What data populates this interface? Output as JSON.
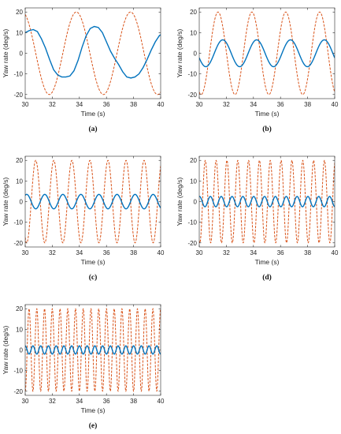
{
  "colors": {
    "measured": "#0072BD",
    "reference": "#D95319"
  },
  "chart_data": [
    {
      "type": "line",
      "caption": "(a)",
      "xlabel": "Time (s)",
      "ylabel": "Yaw rate (deg/s)",
      "xlim": [
        30,
        40
      ],
      "ylim": [
        -22,
        22
      ],
      "xticks": [
        "30",
        "32",
        "34",
        "36",
        "38",
        "40"
      ],
      "yticks": [
        "-20",
        "-10",
        "0",
        "10",
        "20"
      ],
      "series": [
        {
          "style": "dashed",
          "color": "#D95319",
          "frequency_hz": 0.25,
          "amplitude": 20,
          "phase_deg": 110
        },
        {
          "style": "solid",
          "color": "#0072BD",
          "x": [
            30,
            30.3,
            30.6,
            30.9,
            31.2,
            31.5,
            31.8,
            32.1,
            32.4,
            32.7,
            33.0,
            33.3,
            33.6,
            33.9,
            34.2,
            34.5,
            34.8,
            35.1,
            35.4,
            35.7,
            36.0,
            36.3,
            36.6,
            36.9,
            37.2,
            37.5,
            37.8,
            38.1,
            38.4,
            38.7,
            39.0,
            39.3,
            39.6,
            39.9,
            40
          ],
          "y": [
            10,
            11,
            11.5,
            10.5,
            7,
            2.5,
            -3,
            -8,
            -10.5,
            -11.5,
            -11.5,
            -11,
            -8.5,
            -3.5,
            3,
            8.5,
            12,
            13,
            12.5,
            10,
            5.5,
            1,
            -2.5,
            -5.5,
            -9,
            -11.5,
            -12,
            -11.5,
            -10,
            -7,
            -3,
            1.5,
            5.5,
            8.5,
            9
          ]
        }
      ]
    },
    {
      "type": "line",
      "caption": "(b)",
      "xlabel": "Time (s)",
      "ylabel": "Yaw rate (deg/s)",
      "xlim": [
        30,
        40
      ],
      "ylim": [
        -22,
        22
      ],
      "xticks": [
        "30",
        "32",
        "34",
        "36",
        "38",
        "40"
      ],
      "yticks": [
        "-20",
        "-10",
        "0",
        "10",
        "20"
      ],
      "series": [
        {
          "style": "dashed",
          "color": "#D95319",
          "frequency_hz": 0.4,
          "amplitude": 20,
          "phase_deg": 250
        },
        {
          "style": "solid",
          "color": "#0072BD",
          "frequency_hz": 0.4,
          "amplitude": 6.5,
          "phase_deg": 200
        }
      ]
    },
    {
      "type": "line",
      "caption": "(c)",
      "xlabel": "Time (s)",
      "ylabel": "Yaw rate (deg/s)",
      "xlim": [
        30,
        40
      ],
      "ylim": [
        -22,
        22
      ],
      "xticks": [
        "30",
        "32",
        "34",
        "36",
        "38",
        "40"
      ],
      "yticks": [
        "-20",
        "-10",
        "0",
        "10",
        "20"
      ],
      "series": [
        {
          "style": "dashed",
          "color": "#D95319",
          "frequency_hz": 0.75,
          "amplitude": 20,
          "phase_deg": 240
        },
        {
          "style": "solid",
          "color": "#0072BD",
          "frequency_hz": 0.75,
          "amplitude": 3.5,
          "phase_deg": 60
        }
      ]
    },
    {
      "type": "line",
      "caption": "(d)",
      "xlabel": "Time (s)",
      "ylabel": "Yaw rate (deg/s)",
      "xlim": [
        30,
        40
      ],
      "ylim": [
        -22,
        22
      ],
      "xticks": [
        "30",
        "32",
        "34",
        "36",
        "38",
        "40"
      ],
      "yticks": [
        "-20",
        "-10",
        "0",
        "10",
        "20"
      ],
      "series": [
        {
          "style": "dashed",
          "color": "#D95319",
          "frequency_hz": 1.25,
          "amplitude": 20,
          "phase_deg": 250
        },
        {
          "style": "solid",
          "color": "#0072BD",
          "frequency_hz": 1.25,
          "amplitude": 2.5,
          "phase_deg": 80
        }
      ]
    },
    {
      "type": "line",
      "caption": "(e)",
      "xlabel": "Time (s)",
      "ylabel": "Yaw rate (deg/s)",
      "xlim": [
        30,
        40
      ],
      "ylim": [
        -22,
        22
      ],
      "xticks": [
        "30",
        "32",
        "34",
        "36",
        "38",
        "40"
      ],
      "yticks": [
        "-20",
        "-10",
        "0",
        "10",
        "20"
      ],
      "series": [
        {
          "style": "dashed",
          "color": "#D95319",
          "frequency_hz": 1.75,
          "amplitude": 20,
          "phase_deg": 270
        },
        {
          "style": "solid",
          "color": "#0072BD",
          "frequency_hz": 1.75,
          "amplitude": 2,
          "phase_deg": 90
        }
      ]
    }
  ]
}
